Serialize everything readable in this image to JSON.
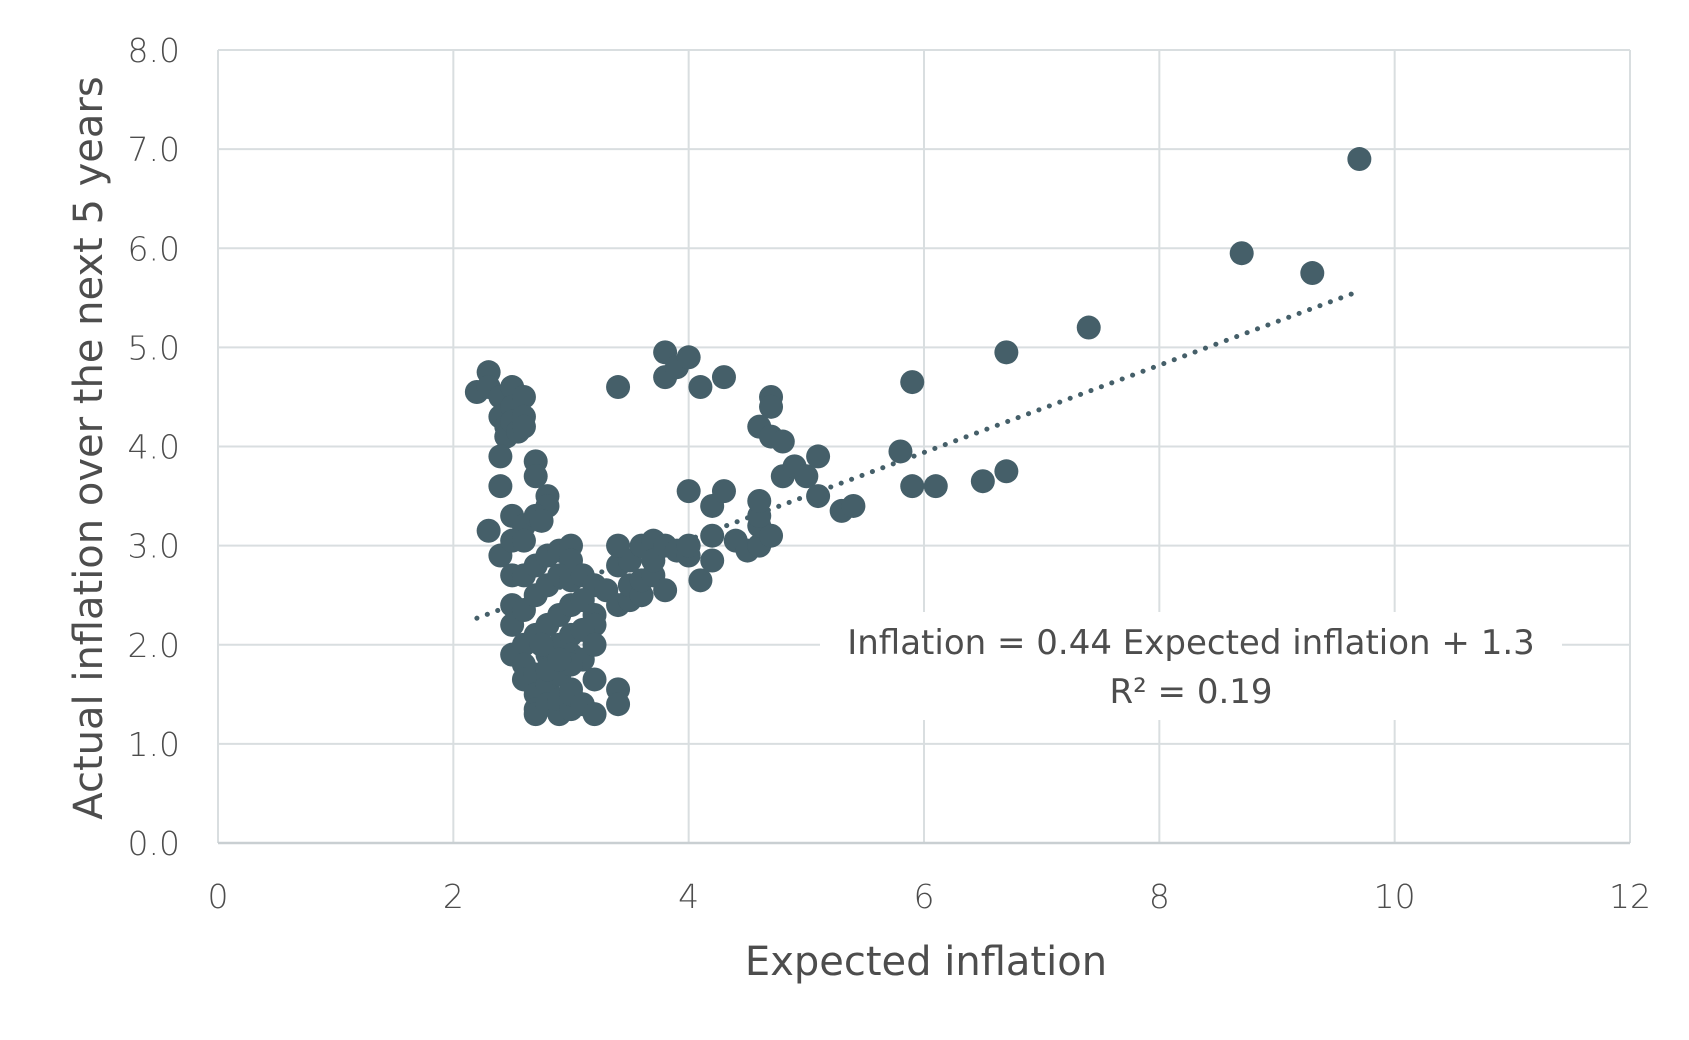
{
  "chart_data": {
    "type": "scatter",
    "xlabel": "Expected inflation",
    "ylabel": "Actual inflation over the next 5 years",
    "xlim": [
      0,
      12
    ],
    "ylim": [
      0,
      8
    ],
    "x_ticks": [
      "0",
      "2",
      "4",
      "6",
      "8",
      "10",
      "12"
    ],
    "y_ticks": [
      "0.0",
      "1.0",
      "2.0",
      "3.0",
      "4.0",
      "5.0",
      "6.0",
      "7.0",
      "8.0"
    ],
    "grid": true,
    "colors": {
      "points": "#455f69",
      "grid": "#d9dee0",
      "trendline": "#455f69"
    },
    "trendline": {
      "style": "dotted",
      "slope": 0.44,
      "intercept": 1.3,
      "x_range": [
        2.2,
        9.7
      ]
    },
    "annotation": {
      "line1": "Inflation = 0.44 Expected inflation + 1.3",
      "line2": "R² = 0.19"
    },
    "points": [
      [
        2.2,
        4.55
      ],
      [
        2.3,
        4.75
      ],
      [
        2.3,
        4.6
      ],
      [
        2.4,
        4.5
      ],
      [
        2.4,
        4.3
      ],
      [
        2.45,
        4.2
      ],
      [
        2.45,
        4.1
      ],
      [
        2.5,
        4.6
      ],
      [
        2.5,
        4.4
      ],
      [
        2.5,
        4.25
      ],
      [
        2.55,
        4.15
      ],
      [
        2.6,
        4.5
      ],
      [
        2.6,
        4.3
      ],
      [
        2.6,
        4.2
      ],
      [
        2.4,
        3.9
      ],
      [
        2.4,
        3.6
      ],
      [
        2.5,
        3.3
      ],
      [
        2.3,
        3.15
      ],
      [
        2.4,
        2.9
      ],
      [
        2.5,
        3.05
      ],
      [
        2.6,
        3.2
      ],
      [
        2.7,
        3.85
      ],
      [
        2.7,
        3.7
      ],
      [
        2.8,
        3.5
      ],
      [
        2.8,
        3.4
      ],
      [
        2.7,
        3.3
      ],
      [
        2.75,
        3.25
      ],
      [
        2.6,
        3.05
      ],
      [
        2.5,
        2.7
      ],
      [
        2.6,
        2.7
      ],
      [
        2.7,
        2.8
      ],
      [
        2.8,
        2.9
      ],
      [
        2.9,
        2.95
      ],
      [
        3.0,
        3.0
      ],
      [
        3.0,
        2.85
      ],
      [
        2.5,
        2.4
      ],
      [
        2.5,
        2.2
      ],
      [
        2.6,
        2.35
      ],
      [
        2.7,
        2.5
      ],
      [
        2.8,
        2.6
      ],
      [
        2.9,
        2.7
      ],
      [
        3.0,
        2.65
      ],
      [
        3.1,
        2.7
      ],
      [
        3.2,
        2.6
      ],
      [
        3.3,
        2.55
      ],
      [
        2.5,
        1.9
      ],
      [
        2.6,
        2.0
      ],
      [
        2.7,
        2.1
      ],
      [
        2.8,
        2.2
      ],
      [
        2.9,
        2.3
      ],
      [
        3.0,
        2.4
      ],
      [
        3.1,
        2.45
      ],
      [
        3.2,
        2.3
      ],
      [
        3.2,
        2.2
      ],
      [
        2.6,
        1.8
      ],
      [
        2.6,
        1.65
      ],
      [
        2.7,
        1.7
      ],
      [
        2.8,
        1.9
      ],
      [
        2.9,
        2.0
      ],
      [
        3.0,
        2.1
      ],
      [
        3.1,
        2.15
      ],
      [
        3.0,
        1.9
      ],
      [
        3.1,
        1.85
      ],
      [
        3.2,
        2.0
      ],
      [
        2.7,
        1.5
      ],
      [
        2.8,
        1.6
      ],
      [
        2.9,
        1.7
      ],
      [
        3.0,
        1.8
      ],
      [
        3.0,
        1.55
      ],
      [
        2.7,
        1.35
      ],
      [
        2.7,
        1.3
      ],
      [
        2.8,
        1.4
      ],
      [
        2.9,
        1.3
      ],
      [
        2.9,
        1.45
      ],
      [
        3.0,
        1.35
      ],
      [
        3.0,
        1.5
      ],
      [
        3.1,
        1.4
      ],
      [
        3.2,
        1.3
      ],
      [
        3.2,
        1.65
      ],
      [
        3.4,
        1.55
      ],
      [
        3.4,
        1.4
      ],
      [
        2.8,
        1.75
      ],
      [
        2.9,
        1.85
      ],
      [
        2.75,
        2.0
      ],
      [
        3.4,
        2.4
      ],
      [
        3.5,
        2.45
      ],
      [
        3.5,
        2.6
      ],
      [
        3.6,
        2.5
      ],
      [
        3.6,
        2.65
      ],
      [
        3.7,
        2.7
      ],
      [
        3.8,
        2.55
      ],
      [
        3.4,
        2.8
      ],
      [
        3.5,
        2.85
      ],
      [
        3.6,
        3.0
      ],
      [
        3.7,
        3.05
      ],
      [
        3.7,
        2.85
      ],
      [
        3.8,
        3.0
      ],
      [
        3.9,
        2.95
      ],
      [
        3.4,
        3.0
      ],
      [
        4.0,
        2.9
      ],
      [
        4.0,
        3.0
      ],
      [
        4.1,
        2.65
      ],
      [
        4.2,
        2.85
      ],
      [
        4.2,
        3.1
      ],
      [
        4.4,
        3.05
      ],
      [
        4.5,
        2.95
      ],
      [
        4.6,
        3.0
      ],
      [
        4.6,
        3.2
      ],
      [
        4.7,
        3.1
      ],
      [
        4.6,
        3.3
      ],
      [
        4.2,
        3.4
      ],
      [
        4.3,
        3.55
      ],
      [
        4.0,
        3.55
      ],
      [
        4.6,
        3.45
      ],
      [
        3.4,
        4.6
      ],
      [
        3.8,
        4.95
      ],
      [
        3.8,
        4.7
      ],
      [
        3.9,
        4.8
      ],
      [
        4.0,
        4.9
      ],
      [
        4.1,
        4.6
      ],
      [
        4.3,
        4.7
      ],
      [
        4.6,
        4.2
      ],
      [
        4.7,
        4.5
      ],
      [
        4.7,
        4.4
      ],
      [
        4.7,
        4.1
      ],
      [
        4.8,
        4.05
      ],
      [
        4.8,
        3.7
      ],
      [
        4.9,
        3.8
      ],
      [
        5.0,
        3.7
      ],
      [
        5.1,
        3.9
      ],
      [
        5.1,
        3.5
      ],
      [
        5.3,
        3.35
      ],
      [
        5.4,
        3.4
      ],
      [
        5.8,
        3.95
      ],
      [
        5.9,
        4.65
      ],
      [
        5.9,
        3.6
      ],
      [
        6.1,
        3.6
      ],
      [
        6.5,
        3.65
      ],
      [
        6.7,
        3.75
      ],
      [
        6.7,
        4.95
      ],
      [
        7.4,
        5.2
      ],
      [
        8.7,
        5.95
      ],
      [
        9.3,
        5.75
      ],
      [
        9.7,
        6.9
      ]
    ]
  }
}
